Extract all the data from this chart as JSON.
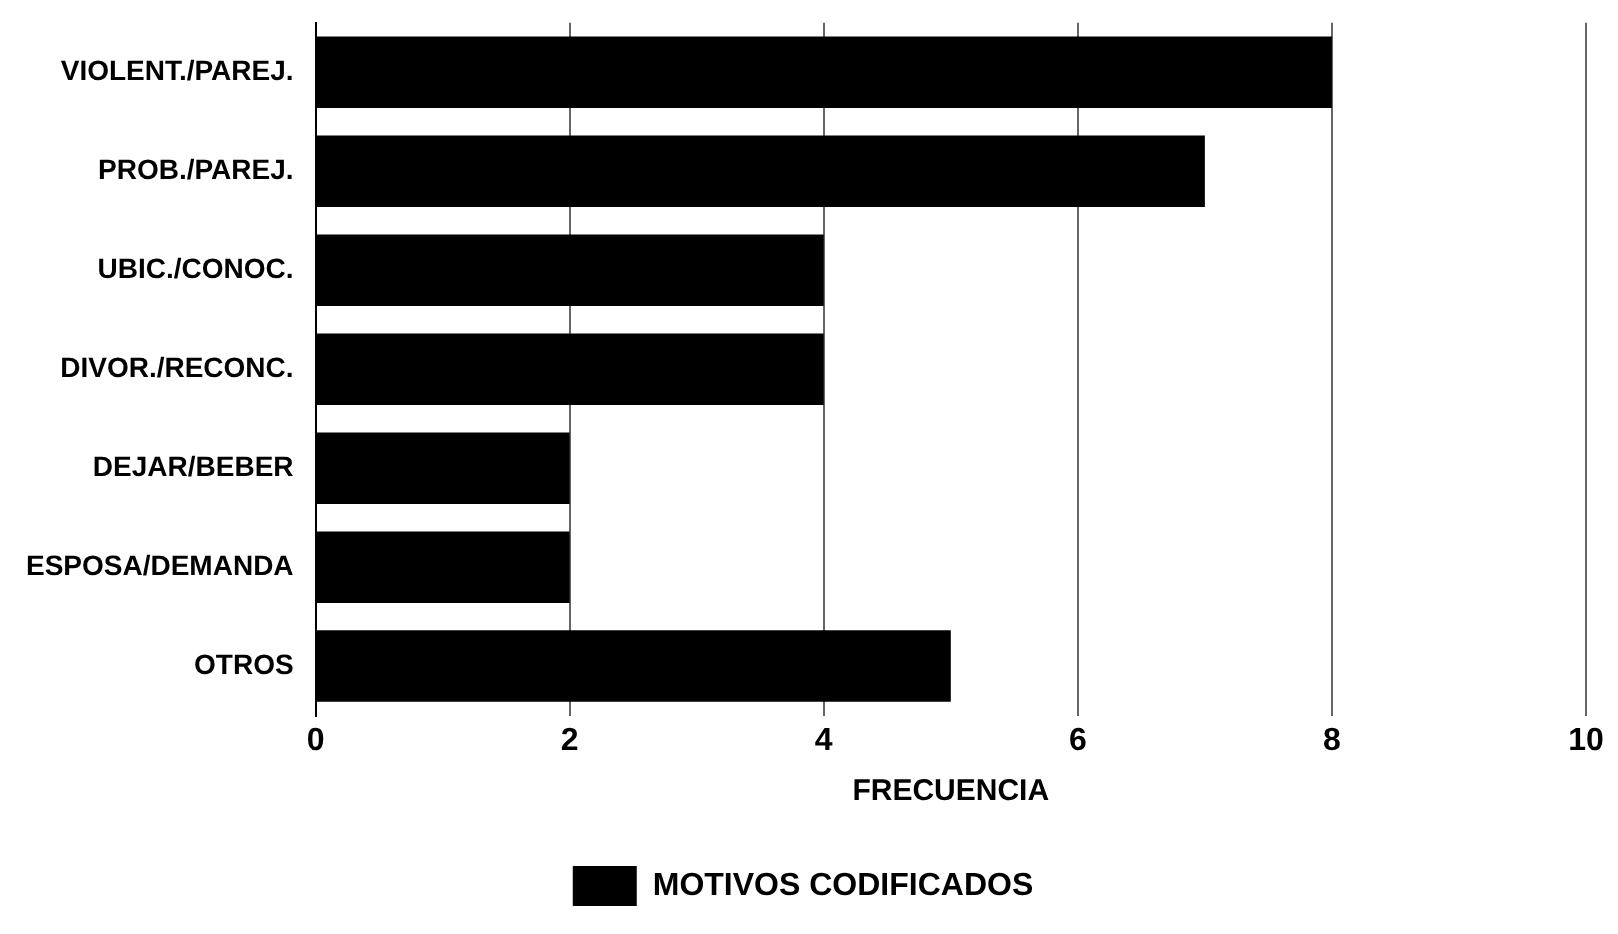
{
  "chart_data": {
    "type": "bar",
    "orientation": "horizontal",
    "xlabel": "FRECUENCIA",
    "categories": [
      "VIOLENT./PAREJ.",
      "PROB./PAREJ.",
      "UBIC./CONOC.",
      "DIVOR./RECONC.",
      "DEJAR/BEBER",
      "ESPOSA/DEMANDA",
      "OTROS"
    ],
    "series": [
      {
        "name": "MOTIVOS CODIFICADOS",
        "color": "#000000",
        "values": [
          8,
          7,
          4,
          4,
          2,
          2,
          5
        ]
      }
    ],
    "xlim": [
      0,
      10
    ],
    "xticks": [
      0,
      2,
      4,
      6,
      8,
      10
    ],
    "grid": "x",
    "legend": "bottom"
  }
}
